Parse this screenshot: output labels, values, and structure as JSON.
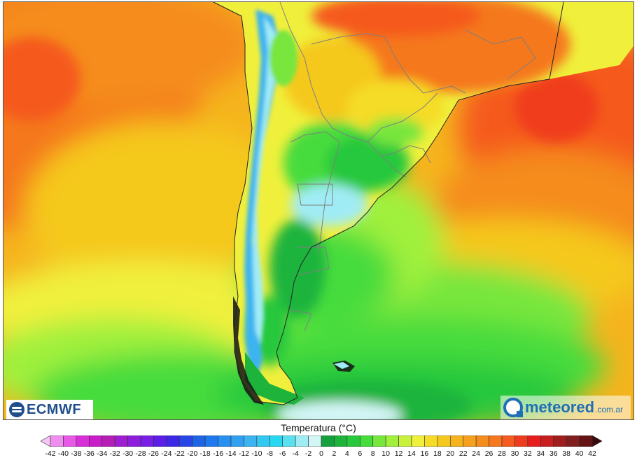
{
  "map": {
    "region": "Southern South America",
    "variable": "Temperatura"
  },
  "logos": {
    "left": "ECMWF",
    "right_name": "meteored",
    "right_domain": ".com.ar"
  },
  "legend": {
    "title": "Temperatura (°C)",
    "ticks": [
      "-42",
      "-40",
      "-38",
      "-36",
      "-34",
      "-32",
      "-30",
      "-28",
      "-26",
      "-24",
      "-22",
      "-20",
      "-18",
      "-16",
      "-14",
      "-12",
      "-10",
      "-8",
      "-6",
      "-4",
      "-2",
      "0",
      "2",
      "4",
      "6",
      "8",
      "10",
      "12",
      "14",
      "16",
      "18",
      "20",
      "22",
      "24",
      "26",
      "28",
      "30",
      "32",
      "34",
      "36",
      "38",
      "40",
      "42"
    ],
    "colors": [
      "#f5c7f5",
      "#f08ef0",
      "#e65ae6",
      "#d92fd9",
      "#c81ec8",
      "#b41eb4",
      "#a01ed2",
      "#8c1edc",
      "#781ee6",
      "#5a1ee6",
      "#3c28e6",
      "#2846e6",
      "#1e64e6",
      "#1e78f0",
      "#2890f0",
      "#32a0f0",
      "#3cb4f0",
      "#32c8f0",
      "#28d7f0",
      "#5ae1f0",
      "#a0ecf5",
      "#d2f5f5",
      "#14a03c",
      "#1eb43c",
      "#28c83c",
      "#46dc3c",
      "#78e63c",
      "#a0f03c",
      "#c8f03c",
      "#f0f03c",
      "#f5dc28",
      "#f5c81e",
      "#f5b41e",
      "#f5a01e",
      "#f58c1e",
      "#f5781e",
      "#f55a1e",
      "#f03c1e",
      "#e61e1e",
      "#c81e1e",
      "#a01e1e",
      "#821e1e",
      "#641414",
      "#3c0a0a"
    ]
  }
}
